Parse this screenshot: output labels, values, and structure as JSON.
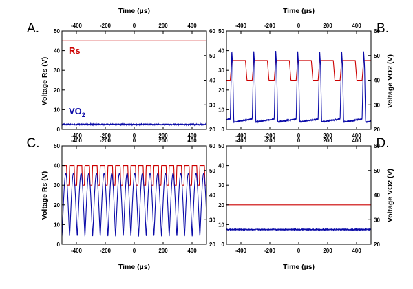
{
  "colors": {
    "rs": "#cc0000",
    "vo2": "#0a0aa8",
    "axis": "#000000"
  },
  "texts": {
    "x_axis_title": "Time (µs)",
    "left_axis_title": "Voltage Rs (V)",
    "right_axis_title": "Voltage VO2 (V)",
    "rs_label": "Rs",
    "vo2_label_main": "VO",
    "vo2_label_sub": "2"
  },
  "chart_data": [
    {
      "panel": "A.",
      "type": "line",
      "xlim": [
        -500,
        500
      ],
      "ylim_left": [
        0,
        50
      ],
      "ylim_right": [
        20,
        60
      ],
      "x_ticks": [
        -400,
        -200,
        0,
        200,
        400
      ],
      "y_ticks_left": [
        0,
        10,
        20,
        30,
        40,
        50
      ],
      "y_ticks_right": [
        20,
        30,
        40,
        50,
        60
      ],
      "series": [
        {
          "name": "Rs",
          "axis": "left",
          "shape": "constant",
          "value": 45
        },
        {
          "name": "VO2",
          "axis": "left",
          "shape": "constant",
          "value": 2.5
        }
      ]
    },
    {
      "panel": "B.",
      "type": "line",
      "xlim": [
        -500,
        500
      ],
      "ylim_left": [
        0,
        50
      ],
      "ylim_right": [
        20,
        60
      ],
      "x_ticks": [
        -400,
        -200,
        0,
        200,
        400
      ],
      "y_ticks_left": [
        0,
        10,
        20,
        30,
        40,
        50
      ],
      "y_ticks_right": [
        20,
        30,
        40,
        50,
        60
      ],
      "series": [
        {
          "name": "Rs",
          "axis": "right",
          "shape": "square",
          "period": 152,
          "phase": -463,
          "high": 48,
          "low": 40,
          "duty": 0.62
        },
        {
          "name": "VO2",
          "axis": "right",
          "shape": "spike",
          "period": 152,
          "phase": -463,
          "peak": 52,
          "base": 23,
          "step": 46
        }
      ]
    },
    {
      "panel": "C.",
      "type": "line",
      "xlim": [
        -500,
        500
      ],
      "ylim_left": [
        0,
        50
      ],
      "ylim_right": [
        20,
        60
      ],
      "x_ticks": [
        -400,
        -200,
        0,
        200,
        400
      ],
      "y_ticks_left": [
        0,
        10,
        20,
        30,
        40,
        50
      ],
      "y_ticks_right": [
        20,
        30,
        40,
        50,
        60
      ],
      "series": [
        {
          "name": "Rs",
          "axis": "left",
          "shape": "square",
          "period": 53,
          "phase": -500,
          "high": 40,
          "low": 30,
          "duty": 0.6
        },
        {
          "name": "VO2",
          "axis": "left",
          "shape": "sine",
          "period": 53,
          "phase": -500,
          "high": 36,
          "low": 4
        }
      ]
    },
    {
      "panel": "D.",
      "type": "line",
      "xlim": [
        -500,
        500
      ],
      "ylim_left": [
        0,
        50
      ],
      "ylim_right": [
        20,
        60
      ],
      "x_ticks": [
        -400,
        -200,
        0,
        200,
        400
      ],
      "y_ticks_left": [
        0,
        10,
        20,
        30,
        40,
        50
      ],
      "y_ticks_right": [
        20,
        30,
        40,
        50,
        60
      ],
      "series": [
        {
          "name": "Rs",
          "axis": "left",
          "shape": "constant",
          "value": 20
        },
        {
          "name": "VO2",
          "axis": "left",
          "shape": "constant",
          "value": 7.5
        }
      ]
    }
  ]
}
